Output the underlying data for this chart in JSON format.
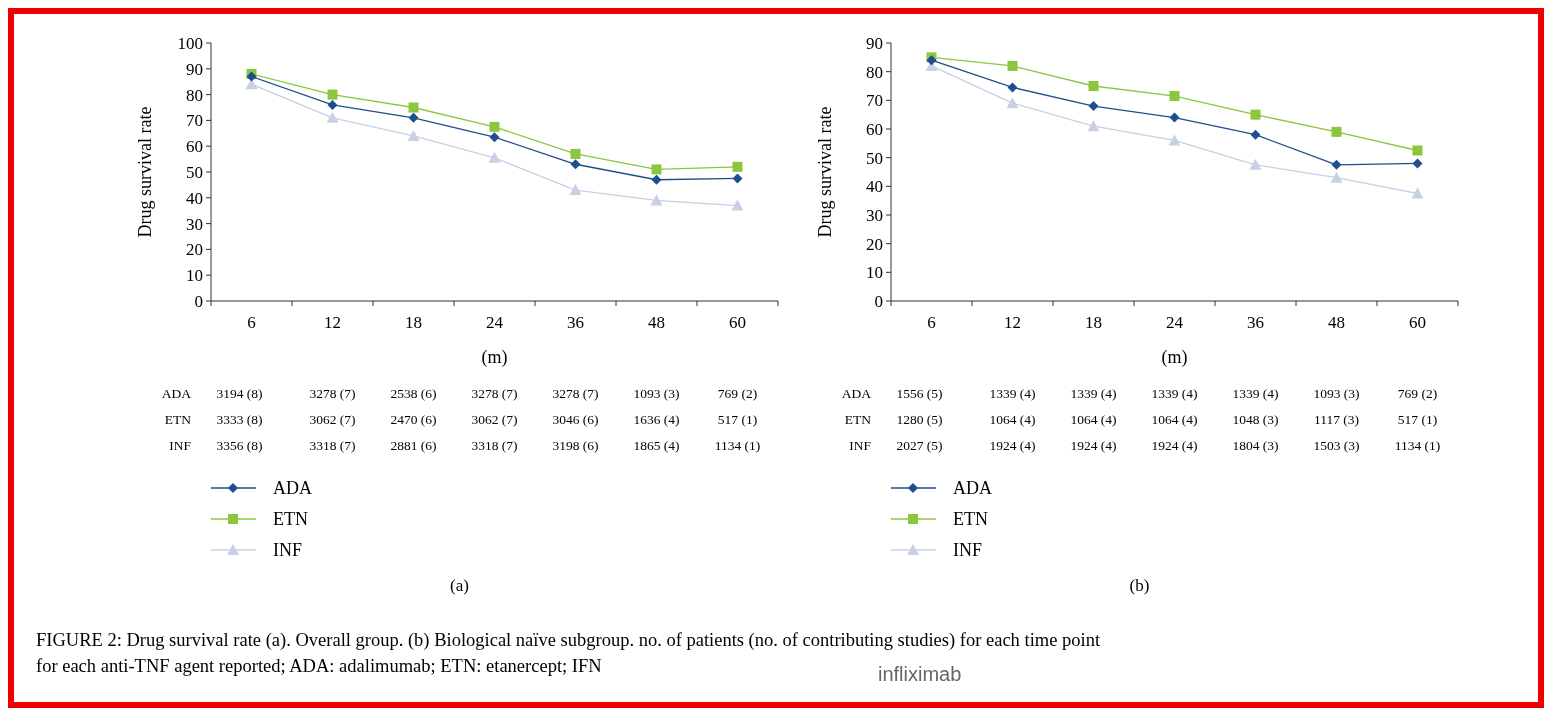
{
  "chart_data": [
    {
      "type": "line",
      "ylabel": "Drug survival rate",
      "xlabel": "(m)",
      "categories": [
        "6",
        "12",
        "18",
        "24",
        "36",
        "48",
        "60"
      ],
      "ylim": [
        0,
        100
      ],
      "yticks": [
        0,
        10,
        20,
        30,
        40,
        50,
        60,
        70,
        80,
        90,
        100
      ],
      "grid": false,
      "legend": "bottom left",
      "series": [
        {
          "name": "ADA",
          "color": "#1f4e8c",
          "marker": "diamond",
          "values": [
            87,
            76,
            71,
            63.5,
            53,
            47,
            47.5
          ]
        },
        {
          "name": "ETN",
          "color": "#8cc63f",
          "marker": "square",
          "values": [
            88,
            80,
            75,
            67.5,
            57,
            51,
            52
          ]
        },
        {
          "name": "INF",
          "color": "#c8d0e6",
          "marker": "triangle",
          "values": [
            84,
            71,
            64,
            55.5,
            43,
            39,
            37
          ]
        }
      ],
      "annotations": [
        "ADA",
        "3194 (8)",
        "3278 (7)",
        "2538 (6)",
        "3278 (7)",
        "3278 (7)",
        "1093 (3)",
        "769 (2)",
        "ETN",
        "3333 (8)",
        "3062 (7)",
        "2470 (6)",
        "3062 (7)",
        "3046 (6)",
        "1636 (4)",
        "517 (1)",
        "INF",
        "3356 (8)",
        "3318 (7)",
        "2881 (6)",
        "3318 (7)",
        "3198 (6)",
        "1865 (4)",
        "1134 (1)",
        "(a)",
        "FIGURE 2: Drug survival rate (a). Overall group. (b) Biological naïve subgroup. no. of patients (no. of contributing studies) for each time point",
        "for each anti-TNF agent reported; ADA: adalimumab; ETN: etanercept; IFN",
        "infliximab"
      ]
    },
    {
      "type": "line",
      "ylabel": "Drug survival rate",
      "xlabel": "(m)",
      "categories": [
        "6",
        "12",
        "18",
        "24",
        "36",
        "48",
        "60"
      ],
      "ylim": [
        0,
        90
      ],
      "yticks": [
        0,
        10,
        20,
        30,
        40,
        50,
        60,
        70,
        80,
        90
      ],
      "grid": false,
      "legend": "bottom left",
      "series": [
        {
          "name": "ADA",
          "color": "#1f4e8c",
          "marker": "diamond",
          "values": [
            84,
            74.5,
            68,
            64,
            58,
            47.5,
            48
          ]
        },
        {
          "name": "ETN",
          "color": "#8cc63f",
          "marker": "square",
          "values": [
            85,
            82,
            75,
            71.5,
            65,
            59,
            52.5
          ]
        },
        {
          "name": "INF",
          "color": "#c8d0e6",
          "marker": "triangle",
          "values": [
            82,
            69,
            61,
            56,
            47.5,
            43,
            37.5
          ]
        }
      ],
      "annotations": [
        "ADA",
        "1556 (5)",
        "1339 (4)",
        "1339 (4)",
        "1339 (4)",
        "1339 (4)",
        "1093 (3)",
        "769 (2)",
        "ETN",
        "1280 (5)",
        "1064 (4)",
        "1064 (4)",
        "1064 (4)",
        "1048 (3)",
        "1117 (3)",
        "517 (1)",
        "INF",
        "2027 (5)",
        "1924 (4)",
        "1924 (4)",
        "1924 (4)",
        "1804 (3)",
        "1503 (3)",
        "1134 (1)",
        "(b)"
      ]
    }
  ]
}
